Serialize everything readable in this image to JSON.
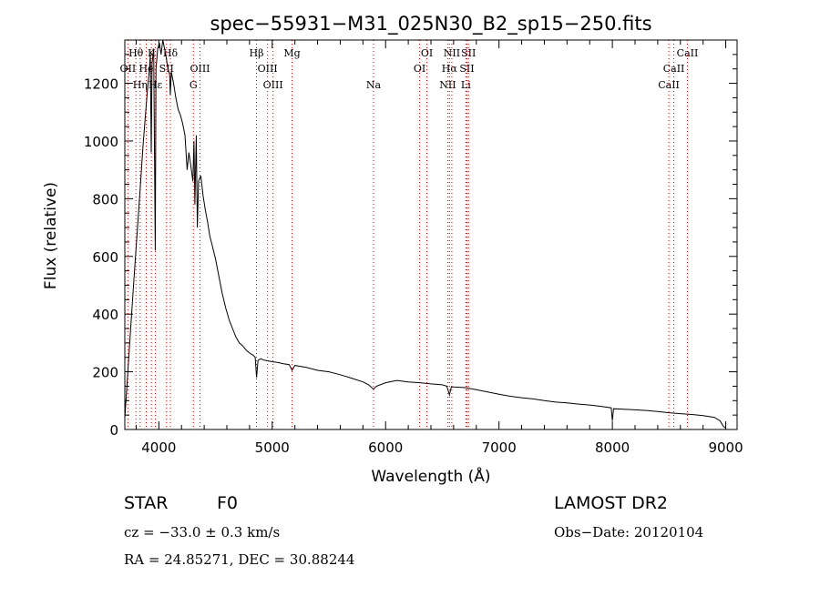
{
  "chart_data": {
    "type": "line",
    "title": "spec−55931−M31_025N30_B2_sp15−250.fits",
    "xlabel": "Wavelength (Å)",
    "ylabel": "Flux (relative)",
    "xlim": [
      3700,
      9100
    ],
    "ylim": [
      0,
      1350
    ],
    "xticks": [
      4000,
      5000,
      6000,
      7000,
      8000,
      9000
    ],
    "xtick_labels": [
      "4000",
      "5000",
      "6000",
      "7000",
      "8000",
      "9000"
    ],
    "yticks": [
      0,
      200,
      400,
      600,
      800,
      1000,
      1200
    ],
    "ytick_labels": [
      "0",
      "200",
      "400",
      "600",
      "800",
      "1000",
      "1200"
    ],
    "grid": false,
    "spectrum": [
      [
        3700,
        40
      ],
      [
        3720,
        160
      ],
      [
        3750,
        340
      ],
      [
        3780,
        520
      ],
      [
        3810,
        690
      ],
      [
        3840,
        860
      ],
      [
        3860,
        980
      ],
      [
        3880,
        1080
      ],
      [
        3900,
        1180
      ],
      [
        3915,
        1240
      ],
      [
        3925,
        1300
      ],
      [
        3933,
        960
      ],
      [
        3940,
        1270
      ],
      [
        3955,
        1320
      ],
      [
        3968,
        620
      ],
      [
        3975,
        1250
      ],
      [
        3990,
        1320
      ],
      [
        4005,
        1340
      ],
      [
        4020,
        1300
      ],
      [
        4035,
        1350
      ],
      [
        4050,
        1320
      ],
      [
        4065,
        1290
      ],
      [
        4080,
        1250
      ],
      [
        4095,
        1230
      ],
      [
        4101,
        1160
      ],
      [
        4110,
        1240
      ],
      [
        4130,
        1200
      ],
      [
        4150,
        1150
      ],
      [
        4170,
        1110
      ],
      [
        4190,
        1090
      ],
      [
        4210,
        1060
      ],
      [
        4230,
        1020
      ],
      [
        4250,
        900
      ],
      [
        4265,
        960
      ],
      [
        4280,
        920
      ],
      [
        4300,
        860
      ],
      [
        4310,
        1000
      ],
      [
        4318,
        780
      ],
      [
        4330,
        1020
      ],
      [
        4340,
        700
      ],
      [
        4350,
        860
      ],
      [
        4370,
        880
      ],
      [
        4390,
        810
      ],
      [
        4410,
        760
      ],
      [
        4430,
        720
      ],
      [
        4450,
        670
      ],
      [
        4470,
        640
      ],
      [
        4500,
        590
      ],
      [
        4530,
        530
      ],
      [
        4560,
        470
      ],
      [
        4590,
        420
      ],
      [
        4620,
        380
      ],
      [
        4650,
        350
      ],
      [
        4680,
        320
      ],
      [
        4710,
        300
      ],
      [
        4740,
        290
      ],
      [
        4770,
        275
      ],
      [
        4800,
        265
      ],
      [
        4830,
        258
      ],
      [
        4850,
        250
      ],
      [
        4862,
        180
      ],
      [
        4875,
        240
      ],
      [
        4900,
        245
      ],
      [
        4930,
        240
      ],
      [
        4960,
        238
      ],
      [
        5000,
        235
      ],
      [
        5050,
        232
      ],
      [
        5100,
        228
      ],
      [
        5150,
        225
      ],
      [
        5175,
        205
      ],
      [
        5200,
        222
      ],
      [
        5300,
        215
      ],
      [
        5400,
        205
      ],
      [
        5500,
        200
      ],
      [
        5600,
        190
      ],
      [
        5700,
        178
      ],
      [
        5800,
        165
      ],
      [
        5850,
        155
      ],
      [
        5893,
        140
      ],
      [
        5920,
        150
      ],
      [
        6000,
        162
      ],
      [
        6100,
        170
      ],
      [
        6200,
        165
      ],
      [
        6300,
        162
      ],
      [
        6400,
        158
      ],
      [
        6500,
        155
      ],
      [
        6540,
        150
      ],
      [
        6563,
        120
      ],
      [
        6580,
        148
      ],
      [
        6700,
        145
      ],
      [
        6800,
        138
      ],
      [
        6900,
        130
      ],
      [
        7000,
        122
      ],
      [
        7100,
        115
      ],
      [
        7200,
        110
      ],
      [
        7300,
        106
      ],
      [
        7400,
        100
      ],
      [
        7500,
        95
      ],
      [
        7600,
        92
      ],
      [
        7700,
        88
      ],
      [
        7800,
        85
      ],
      [
        7900,
        80
      ],
      [
        7990,
        75
      ],
      [
        8000,
        30
      ],
      [
        8010,
        72
      ],
      [
        8100,
        70
      ],
      [
        8200,
        68
      ],
      [
        8300,
        66
      ],
      [
        8400,
        62
      ],
      [
        8500,
        58
      ],
      [
        8600,
        55
      ],
      [
        8700,
        52
      ],
      [
        8800,
        48
      ],
      [
        8900,
        42
      ],
      [
        8950,
        30
      ],
      [
        8980,
        10
      ],
      [
        9000,
        5
      ]
    ],
    "lines": [
      {
        "label": "Hθ",
        "wl": 3798,
        "row": 0
      },
      {
        "label": "OII",
        "wl": 3727,
        "row": 1
      },
      {
        "label": "Hη",
        "wl": 3835,
        "row": 2
      },
      {
        "label": "He",
        "wl": 3889,
        "row": 1
      },
      {
        "label": "Hε",
        "wl": 3970,
        "row": 2
      },
      {
        "label": "K",
        "wl": 3934,
        "row": 0
      },
      {
        "label": "SII",
        "wl": 4068,
        "row": 1
      },
      {
        "label": "Hδ",
        "wl": 4102,
        "row": 0
      },
      {
        "label": "OIII",
        "wl": 4363,
        "row": 1
      },
      {
        "label": "G",
        "wl": 4305,
        "row": 2
      },
      {
        "label": "Hβ",
        "wl": 4861,
        "row": 0
      },
      {
        "label": "OIII",
        "wl": 4959,
        "row": 1
      },
      {
        "label": "OIII",
        "wl": 5007,
        "row": 2
      },
      {
        "label": "Mg",
        "wl": 5175,
        "row": 0
      },
      {
        "label": "Na",
        "wl": 5893,
        "row": 2
      },
      {
        "label": "OI",
        "wl": 6364,
        "row": 0
      },
      {
        "label": "OI",
        "wl": 6300,
        "row": 1
      },
      {
        "label": "NII",
        "wl": 6584,
        "row": 0
      },
      {
        "label": "Hα",
        "wl": 6563,
        "row": 1
      },
      {
        "label": "NII",
        "wl": 6548,
        "row": 2
      },
      {
        "label": "SII",
        "wl": 6731,
        "row": 0
      },
      {
        "label": "SII",
        "wl": 6717,
        "row": 1
      },
      {
        "label": "Li",
        "wl": 6708,
        "row": 2
      },
      {
        "label": "CaII",
        "wl": 8662,
        "row": 0
      },
      {
        "label": "CaII",
        "wl": 8542,
        "row": 1
      },
      {
        "label": "CaII",
        "wl": 8498,
        "row": 2
      }
    ]
  },
  "info": {
    "class_label": "STAR",
    "subclass": "F0",
    "survey": "LAMOST DR2",
    "cz": "cz = −33.0 ± 0.3 km/s",
    "obs_date": "Obs−Date: 20120104",
    "radec": "RA =  24.85271, DEC =  30.88244"
  },
  "colors": {
    "spectrum": "#000000",
    "line_markers": "#cc0000",
    "axes": "#000000",
    "background": "#ffffff"
  }
}
